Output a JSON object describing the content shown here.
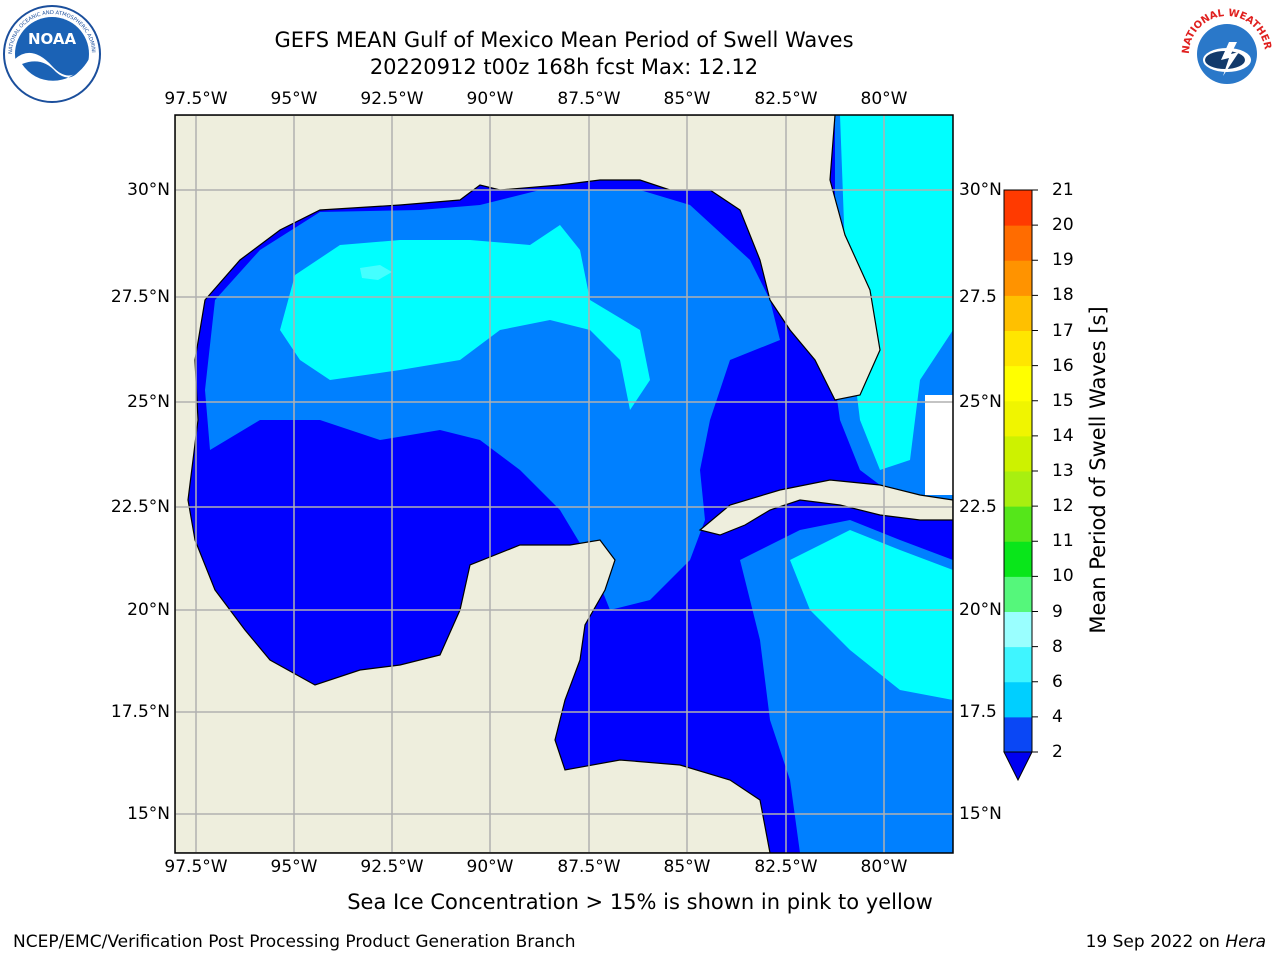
{
  "header": {
    "title_line1": "GEFS MEAN Gulf of Mexico Mean Period of Swell Waves",
    "title_line2": "20220912 t00z 168h fcst   Max: 12.12"
  },
  "logos": {
    "left_text": "NOAA",
    "left_ring_text": "NATIONAL OCEANIC AND ATMOSPHERIC ADMINISTRATION · U.S. DEPARTMENT OF COMMERCE",
    "right_ring_text": "NATIONAL WEATHER SERVICE"
  },
  "map": {
    "lon_labels": [
      "97.5°W",
      "95°W",
      "92.5°W",
      "90°W",
      "87.5°W",
      "85°W",
      "82.5°W",
      "80°W"
    ],
    "lat_labels_left": [
      "30°N",
      "27.5°N",
      "25°N",
      "22.5°N",
      "20°N",
      "17.5°N",
      "15°N"
    ],
    "lat_labels_right": [
      "30°N",
      "27.5",
      "25°N",
      "22.5",
      "20°N",
      "17.5",
      "15°N"
    ],
    "lon_range": [
      -98,
      -78.2
    ],
    "lat_range": [
      14,
      31.7
    ],
    "land_color": "#eeeedd",
    "gridline_color": "#b0b0b0"
  },
  "colorbar": {
    "label": "Mean Period of Swell Waves [s]",
    "ticks": [
      "2",
      "4",
      "6",
      "8",
      "9",
      "10",
      "11",
      "12",
      "13",
      "14",
      "15",
      "16",
      "17",
      "18",
      "19",
      "20",
      "21"
    ],
    "colors": [
      "#0a47f5",
      "#00cfff",
      "#3ff5ff",
      "#9affff",
      "#55f77b",
      "#09e61a",
      "#55e61a",
      "#a8ef10",
      "#cdf200",
      "#f0f500",
      "#ffff00",
      "#ffe600",
      "#ffc000",
      "#ff9300",
      "#ff6c00",
      "#ff3a00",
      "#ff0000"
    ],
    "extend_color": "#0000f0"
  },
  "legend_colors": {
    "period_2_4": "#0000ff",
    "period_4_6": "#0080ff",
    "period_6_8": "#00ffff",
    "period_8_9": "#44ffff",
    "period_9_10": "#9ffff6",
    "period_10_11": "#55ee77",
    "period_11_12": "#22dd22",
    "period_12_13": "#00ee00"
  },
  "note": "Sea Ice Concentration > 15% is shown in pink to yellow",
  "footer": {
    "left": "NCEP/EMC/Verification Post Processing Product Generation Branch",
    "right_prefix": "19 Sep 2022 on",
    "right_host": "Hera"
  }
}
